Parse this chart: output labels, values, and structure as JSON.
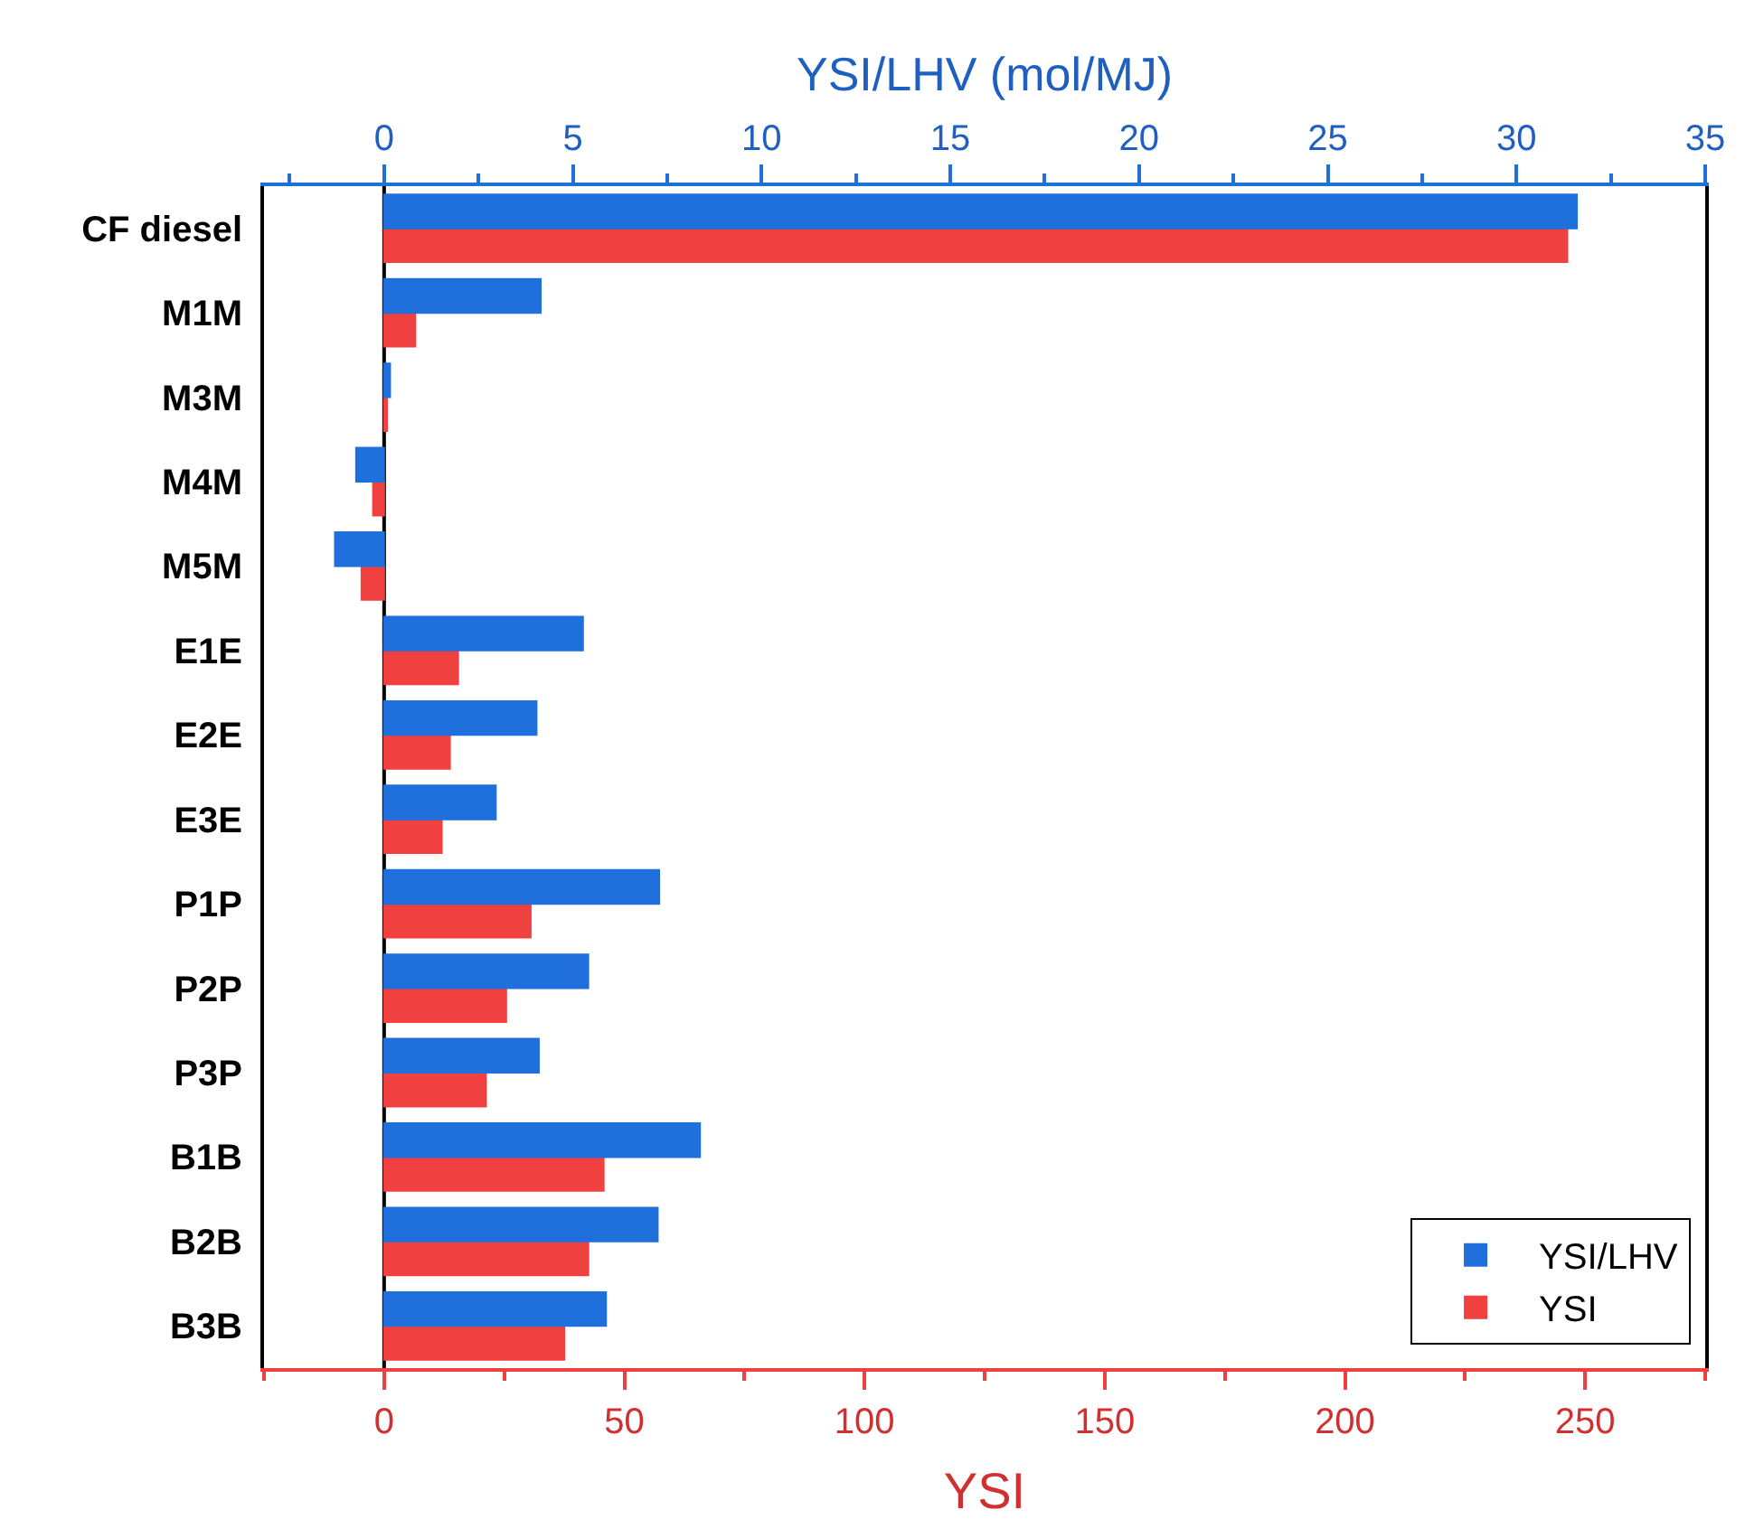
{
  "chart_data": {
    "type": "bar",
    "orientation": "horizontal",
    "xlabel": "YSI",
    "x2label": "YSI/LHV (mol/MJ)",
    "categories": [
      "CF diesel",
      "M1M",
      "M3M",
      "M4M",
      "M5M",
      "E1E",
      "E2E",
      "E3E",
      "P1P",
      "P2P",
      "P3P",
      "B1B",
      "B2B",
      "B3B"
    ],
    "series": [
      {
        "name": "YSI/LHV",
        "color": "#1f6fdc",
        "axis": "x2",
        "values": [
          31.6,
          4.15,
          0.16,
          -0.74,
          -1.3,
          5.27,
          4.04,
          2.96,
          7.29,
          5.41,
          4.1,
          8.37,
          7.25,
          5.88
        ]
      },
      {
        "name": "YSI",
        "color": "#f04040",
        "values": [
          246.3,
          6.5,
          0.6,
          -2.3,
          -4.7,
          15.4,
          13.7,
          12.0,
          30.5,
          25.4,
          21.2,
          45.7,
          42.5,
          37.5
        ]
      }
    ],
    "xlim": [
      -25,
      275
    ],
    "xticks": [
      {
        "value": -25,
        "label": null
      },
      0,
      {
        "value": 25,
        "label": null
      },
      50,
      {
        "value": 75,
        "label": null
      },
      100,
      {
        "value": 125,
        "label": null
      },
      150,
      {
        "value": 175,
        "label": null
      },
      200,
      {
        "value": 225,
        "label": null
      },
      250,
      {
        "value": 275,
        "label": null
      }
    ],
    "x2lim": [
      -3.18,
      35
    ],
    "x2ticks": [
      {
        "value": -2.5,
        "label": null
      },
      0,
      {
        "value": 2.5,
        "label": null
      },
      5,
      {
        "value": 7.5,
        "label": null
      },
      10,
      {
        "value": 12.5,
        "label": null
      },
      15,
      {
        "value": 17.5,
        "label": null
      },
      20,
      {
        "value": 22.5,
        "label": null
      },
      25,
      {
        "value": 27.5,
        "label": null
      },
      30,
      {
        "value": 32.5,
        "label": null
      },
      35
    ],
    "ref_lines": [
      {
        "axis": "x",
        "value": 0,
        "color": "#000000"
      }
    ],
    "legend": "bottom right"
  }
}
